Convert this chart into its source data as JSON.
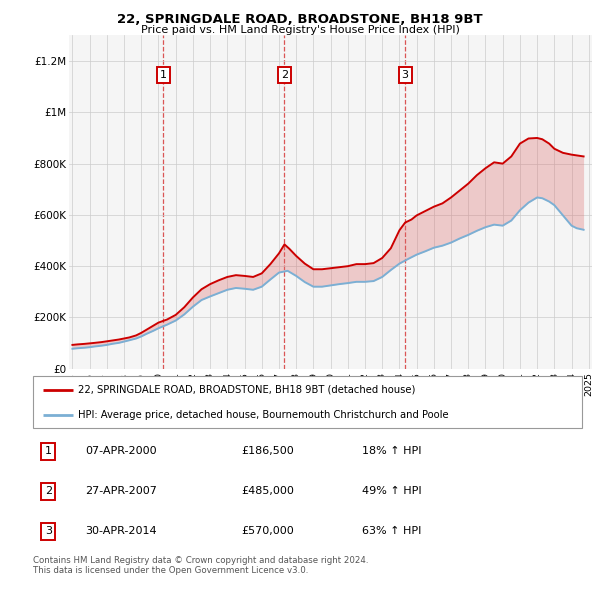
{
  "title": "22, SPRINGDALE ROAD, BROADSTONE, BH18 9BT",
  "subtitle": "Price paid vs. HM Land Registry's House Price Index (HPI)",
  "red_label": "22, SPRINGDALE ROAD, BROADSTONE, BH18 9BT (detached house)",
  "blue_label": "HPI: Average price, detached house, Bournemouth Christchurch and Poole",
  "footnote1": "Contains HM Land Registry data © Crown copyright and database right 2024.",
  "footnote2": "This data is licensed under the Open Government Licence v3.0.",
  "transactions": [
    {
      "num": 1,
      "date": "07-APR-2000",
      "price": "£186,500",
      "hpi": "18% ↑ HPI",
      "year": 2000.27
    },
    {
      "num": 2,
      "date": "27-APR-2007",
      "price": "£485,000",
      "hpi": "49% ↑ HPI",
      "year": 2007.32
    },
    {
      "num": 3,
      "date": "30-APR-2014",
      "price": "£570,000",
      "hpi": "63% ↑ HPI",
      "year": 2014.33
    }
  ],
  "red_line_x": [
    1995.0,
    1995.3,
    1995.7,
    1996.0,
    1996.3,
    1996.7,
    1997.0,
    1997.3,
    1997.7,
    1998.0,
    1998.3,
    1998.7,
    1999.0,
    1999.3,
    1999.7,
    2000.0,
    2000.27,
    2000.5,
    2001.0,
    2001.5,
    2002.0,
    2002.5,
    2003.0,
    2003.5,
    2004.0,
    2004.5,
    2005.0,
    2005.5,
    2006.0,
    2006.5,
    2007.0,
    2007.32,
    2007.6,
    2008.0,
    2008.5,
    2009.0,
    2009.5,
    2010.0,
    2010.5,
    2011.0,
    2011.5,
    2012.0,
    2012.5,
    2013.0,
    2013.5,
    2014.0,
    2014.33,
    2014.7,
    2015.0,
    2015.5,
    2016.0,
    2016.5,
    2017.0,
    2017.5,
    2018.0,
    2018.5,
    2019.0,
    2019.5,
    2020.0,
    2020.5,
    2021.0,
    2021.5,
    2022.0,
    2022.3,
    2022.7,
    2023.0,
    2023.5,
    2024.0,
    2024.3,
    2024.7
  ],
  "red_line_y": [
    93000,
    95000,
    97000,
    99000,
    101000,
    104000,
    107000,
    110000,
    114000,
    118000,
    122000,
    130000,
    140000,
    152000,
    168000,
    180000,
    186500,
    192000,
    210000,
    240000,
    278000,
    310000,
    330000,
    345000,
    358000,
    365000,
    362000,
    358000,
    372000,
    408000,
    450000,
    485000,
    468000,
    440000,
    410000,
    388000,
    388000,
    392000,
    396000,
    400000,
    408000,
    408000,
    412000,
    432000,
    470000,
    540000,
    570000,
    582000,
    598000,
    615000,
    632000,
    645000,
    668000,
    695000,
    722000,
    755000,
    782000,
    805000,
    800000,
    828000,
    878000,
    898000,
    900000,
    895000,
    878000,
    858000,
    842000,
    835000,
    832000,
    828000
  ],
  "blue_line_x": [
    1995.0,
    1995.3,
    1995.7,
    1996.0,
    1996.3,
    1996.7,
    1997.0,
    1997.3,
    1997.7,
    1998.0,
    1998.3,
    1998.7,
    1999.0,
    1999.3,
    1999.7,
    2000.0,
    2000.5,
    2001.0,
    2001.5,
    2002.0,
    2002.5,
    2003.0,
    2003.5,
    2004.0,
    2004.5,
    2005.0,
    2005.5,
    2006.0,
    2006.5,
    2007.0,
    2007.5,
    2008.0,
    2008.5,
    2009.0,
    2009.5,
    2010.0,
    2010.5,
    2011.0,
    2011.5,
    2012.0,
    2012.5,
    2013.0,
    2013.5,
    2014.0,
    2014.5,
    2015.0,
    2015.5,
    2016.0,
    2016.5,
    2017.0,
    2017.5,
    2018.0,
    2018.5,
    2019.0,
    2019.5,
    2020.0,
    2020.5,
    2021.0,
    2021.5,
    2022.0,
    2022.3,
    2022.7,
    2023.0,
    2023.5,
    2024.0,
    2024.3,
    2024.7
  ],
  "blue_line_y": [
    78000,
    80000,
    82000,
    84000,
    87000,
    90000,
    93000,
    97000,
    101000,
    106000,
    111000,
    118000,
    126000,
    136000,
    148000,
    158000,
    172000,
    188000,
    212000,
    242000,
    268000,
    282000,
    295000,
    308000,
    315000,
    312000,
    308000,
    320000,
    348000,
    375000,
    382000,
    362000,
    338000,
    320000,
    320000,
    325000,
    330000,
    334000,
    339000,
    339000,
    342000,
    358000,
    385000,
    410000,
    428000,
    445000,
    458000,
    472000,
    480000,
    492000,
    508000,
    522000,
    538000,
    552000,
    562000,
    558000,
    578000,
    618000,
    648000,
    668000,
    665000,
    652000,
    638000,
    598000,
    558000,
    548000,
    542000
  ],
  "ylim": [
    0,
    1300000
  ],
  "xlim": [
    1994.8,
    2025.2
  ],
  "yticks": [
    0,
    200000,
    400000,
    600000,
    800000,
    1000000,
    1200000
  ],
  "ytick_labels": [
    "£0",
    "£200K",
    "£400K",
    "£600K",
    "£800K",
    "£1M",
    "£1.2M"
  ],
  "xticks": [
    1995,
    1996,
    1997,
    1998,
    1999,
    2000,
    2001,
    2002,
    2003,
    2004,
    2005,
    2006,
    2007,
    2008,
    2009,
    2010,
    2011,
    2012,
    2013,
    2014,
    2015,
    2016,
    2017,
    2018,
    2019,
    2020,
    2021,
    2022,
    2023,
    2024,
    2025
  ],
  "red_color": "#cc0000",
  "blue_color": "#7bafd4",
  "red_fill": "#dd6666",
  "blue_fill": "#aaccee",
  "grid_color": "#cccccc",
  "plot_bg_color": "#f5f5f5"
}
